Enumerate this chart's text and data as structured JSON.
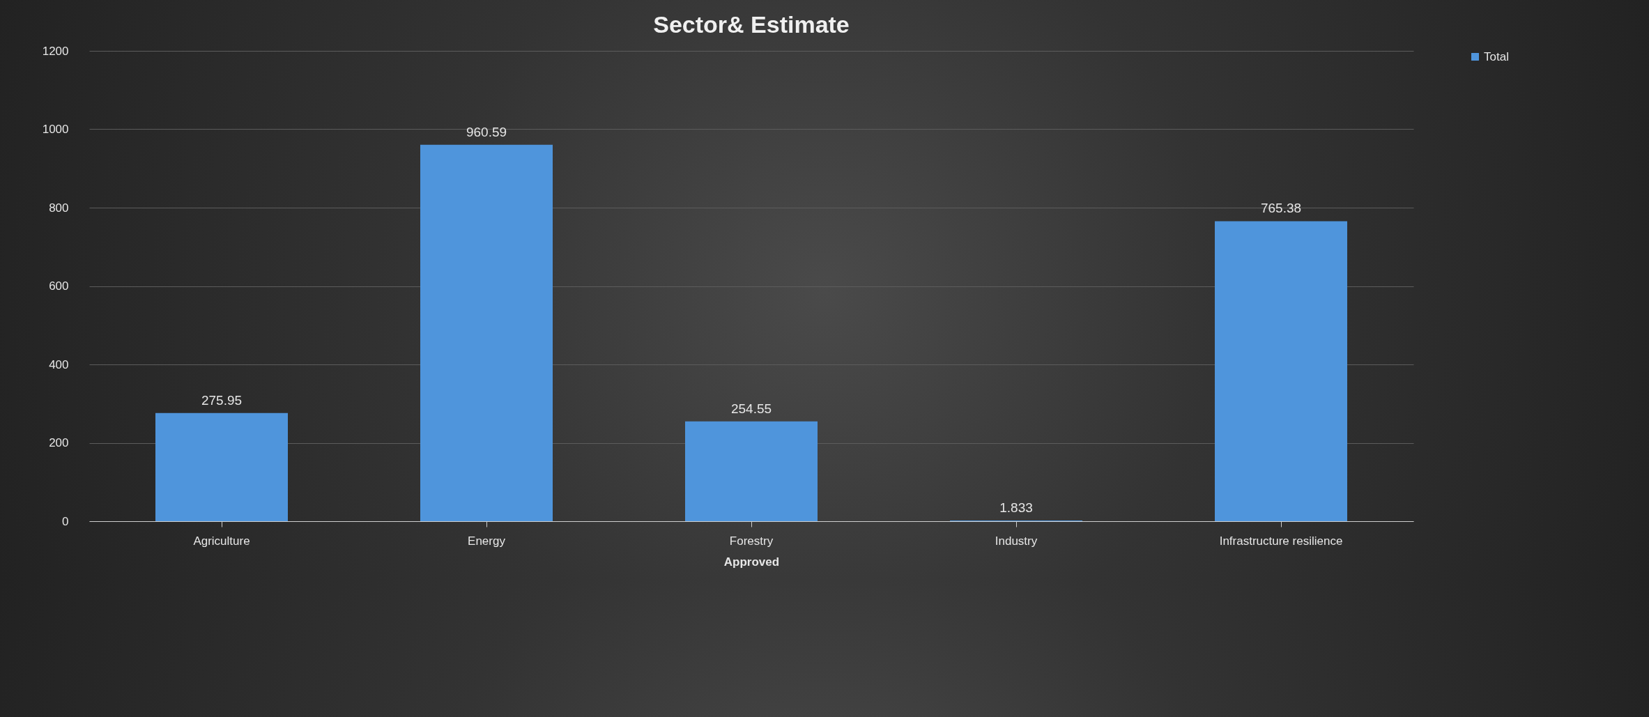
{
  "chart_data": {
    "type": "bar",
    "title": "Sector& Estimate",
    "xlabel": "Approved",
    "categories": [
      "Agriculture",
      "Energy",
      "Forestry",
      "Industry",
      "Infrastructure resilience"
    ],
    "series": [
      {
        "name": "Total",
        "color": "#4f95dc",
        "values": [
          275.95,
          960.59,
          254.55,
          1.833,
          765.38
        ]
      }
    ],
    "ylim": [
      0,
      1200
    ],
    "yticks": [
      0,
      200,
      400,
      600,
      800,
      1000,
      1200
    ],
    "grid": "y",
    "legend": "right",
    "data_labels": true
  }
}
